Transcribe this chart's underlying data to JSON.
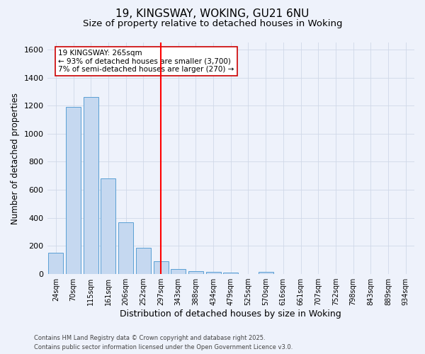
{
  "title1": "19, KINGSWAY, WOKING, GU21 6NU",
  "title2": "Size of property relative to detached houses in Woking",
  "xlabel": "Distribution of detached houses by size in Woking",
  "ylabel": "Number of detached properties",
  "categories": [
    "24sqm",
    "70sqm",
    "115sqm",
    "161sqm",
    "206sqm",
    "252sqm",
    "297sqm",
    "343sqm",
    "388sqm",
    "434sqm",
    "479sqm",
    "525sqm",
    "570sqm",
    "616sqm",
    "661sqm",
    "707sqm",
    "752sqm",
    "798sqm",
    "843sqm",
    "889sqm",
    "934sqm"
  ],
  "values": [
    150,
    1190,
    1260,
    680,
    370,
    185,
    90,
    35,
    20,
    15,
    10,
    0,
    15,
    0,
    0,
    0,
    0,
    0,
    0,
    0,
    0
  ],
  "bar_color": "#c5d8f0",
  "bar_edge_color": "#5a9fd4",
  "vline_x": 6.0,
  "vline_color": "red",
  "annotation_title": "19 KINGSWAY: 265sqm",
  "annotation_line1": "← 93% of detached houses are smaller (3,700)",
  "annotation_line2": "7% of semi-detached houses are larger (270) →",
  "annotation_box_color": "#ffffff",
  "annotation_box_edge": "#cc0000",
  "footer1": "Contains HM Land Registry data © Crown copyright and database right 2025.",
  "footer2": "Contains public sector information licensed under the Open Government Licence v3.0.",
  "ylim": [
    0,
    1650
  ],
  "yticks": [
    0,
    200,
    400,
    600,
    800,
    1000,
    1200,
    1400,
    1600
  ],
  "background_color": "#eef2fb",
  "grid_color": "#d0d8e8",
  "title1_fontsize": 11,
  "title2_fontsize": 9.5,
  "xlabel_fontsize": 9,
  "ylabel_fontsize": 8.5,
  "tick_fontsize": 7,
  "footer_fontsize": 6,
  "ann_fontsize": 7.5
}
